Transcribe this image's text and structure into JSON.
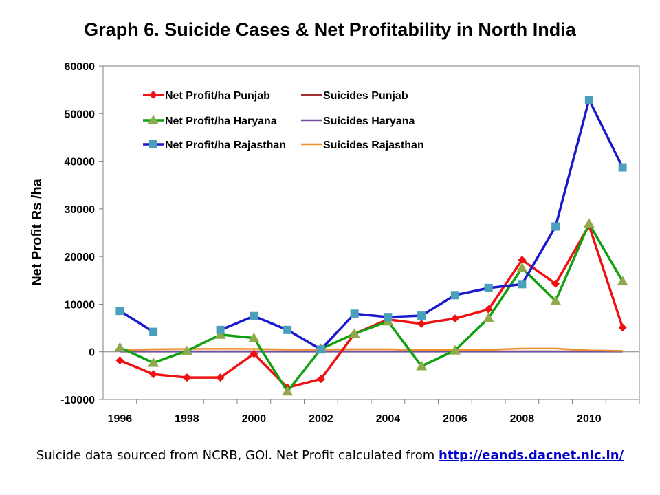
{
  "chart_data": {
    "type": "line",
    "title": "Graph 6. Suicide Cases & Net Profitability in North India",
    "ylabel": "Net Profit Rs /ha",
    "xlabel": "",
    "x": [
      1996,
      1997,
      1998,
      1999,
      2000,
      2001,
      2002,
      2003,
      2004,
      2005,
      2006,
      2007,
      2008,
      2009,
      2010,
      2011
    ],
    "xticks": [
      "1996",
      "1998",
      "2000",
      "2002",
      "2004",
      "2006",
      "2008",
      "2010"
    ],
    "yticks": [
      "60000",
      "50000",
      "40000",
      "30000",
      "20000",
      "10000",
      "0",
      "-10000"
    ],
    "ylim": [
      -10000,
      60000
    ],
    "grid": false,
    "legend_position": "top-left",
    "series": [
      {
        "name": "Net Profit/ha Punjab",
        "color": "#ee1111",
        "marker": "diamond",
        "marker_color": "#ee1111",
        "values": [
          -1800,
          -4700,
          -5400,
          -5400,
          -400,
          -7500,
          -5700,
          3800,
          6800,
          5900,
          7000,
          8900,
          19300,
          14300,
          26500,
          5100
        ]
      },
      {
        "name": "Suicides Punjab",
        "color": "#a03030",
        "marker": "none",
        "values": [
          100,
          100,
          100,
          100,
          100,
          100,
          100,
          100,
          100,
          100,
          100,
          100,
          100,
          100,
          100,
          100
        ]
      },
      {
        "name": "Net Profit/ha Haryana",
        "color": "#11a011",
        "marker": "triangle",
        "marker_color": "#8faa4c",
        "values": [
          900,
          -2300,
          200,
          3600,
          2900,
          -8300,
          600,
          3800,
          6400,
          -3000,
          300,
          7100,
          17600,
          10700,
          26900,
          14800
        ]
      },
      {
        "name": "Suicides Haryana",
        "color": "#7050a0",
        "marker": "none",
        "values": [
          50,
          50,
          50,
          50,
          50,
          50,
          50,
          50,
          50,
          50,
          50,
          50,
          50,
          50,
          50,
          50
        ]
      },
      {
        "name": "Net Profit/ha Rajasthan",
        "color": "#1a1acc",
        "marker": "square",
        "marker_color": "#4aa0bc",
        "values": [
          8600,
          4200,
          null,
          4600,
          7500,
          4600,
          500,
          8000,
          7300,
          7600,
          11900,
          13400,
          14200,
          26300,
          52900,
          38700
        ]
      },
      {
        "name": "Suicides Rajasthan",
        "color": "#f0902c",
        "marker": "none",
        "values": [
          400,
          550,
          600,
          650,
          600,
          500,
          500,
          550,
          550,
          400,
          350,
          450,
          700,
          700,
          300,
          200
        ]
      }
    ]
  },
  "footer": {
    "text": "Suicide data sourced from NCRB, GOI. Net Profit calculated from ",
    "link": "http://eands.dacnet.nic.in/"
  }
}
